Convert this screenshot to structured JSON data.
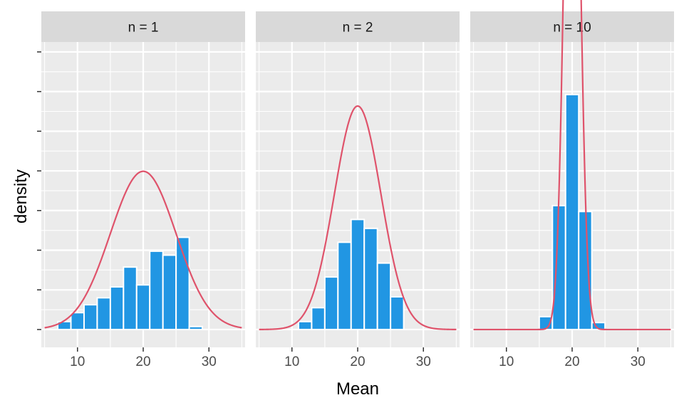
{
  "chart_data": {
    "type": "bar",
    "xlabel": "Mean",
    "ylabel": "density",
    "xlim": [
      4.5,
      35.5
    ],
    "xticks": [
      10,
      20,
      30
    ],
    "ylim": [
      -0.009,
      0.145
    ],
    "grid": true,
    "legend": "none",
    "colors": {
      "bar_fill": "#2196E3",
      "bar_outline": "#ffffff",
      "curve": "#DF536B",
      "panel_bg": "#EBEBEB",
      "strip_bg": "#D9D9D9",
      "grid": "#ffffff"
    },
    "panels": [
      {
        "label": "n = 1",
        "curve": {
          "mean": 20,
          "sd": 5
        },
        "bin_width": 2,
        "bars": [
          {
            "x": 8,
            "y": 0.004
          },
          {
            "x": 10,
            "y": 0.0085
          },
          {
            "x": 12,
            "y": 0.0125
          },
          {
            "x": 14,
            "y": 0.016
          },
          {
            "x": 16,
            "y": 0.0215
          },
          {
            "x": 18,
            "y": 0.0315
          },
          {
            "x": 20,
            "y": 0.0225
          },
          {
            "x": 22,
            "y": 0.0395
          },
          {
            "x": 24,
            "y": 0.0375
          },
          {
            "x": 26,
            "y": 0.0465
          },
          {
            "x": 28,
            "y": 0.0015
          }
        ]
      },
      {
        "label": "n = 2",
        "curve": {
          "mean": 20,
          "sd": 3.54
        },
        "bin_width": 2,
        "bars": [
          {
            "x": 12,
            "y": 0.004
          },
          {
            "x": 14,
            "y": 0.011
          },
          {
            "x": 16,
            "y": 0.0265
          },
          {
            "x": 18,
            "y": 0.044
          },
          {
            "x": 20,
            "y": 0.0555
          },
          {
            "x": 22,
            "y": 0.051
          },
          {
            "x": 24,
            "y": 0.0335
          },
          {
            "x": 26,
            "y": 0.0165
          }
        ]
      },
      {
        "label": "n = 10",
        "curve": {
          "mean": 20,
          "sd": 1.1
        },
        "bin_width": 2,
        "bars": [
          {
            "x": 16,
            "y": 0.0065
          },
          {
            "x": 18,
            "y": 0.0625
          },
          {
            "x": 20,
            "y": 0.1185
          },
          {
            "x": 22,
            "y": 0.0595
          },
          {
            "x": 24,
            "y": 0.0035
          }
        ]
      }
    ]
  }
}
